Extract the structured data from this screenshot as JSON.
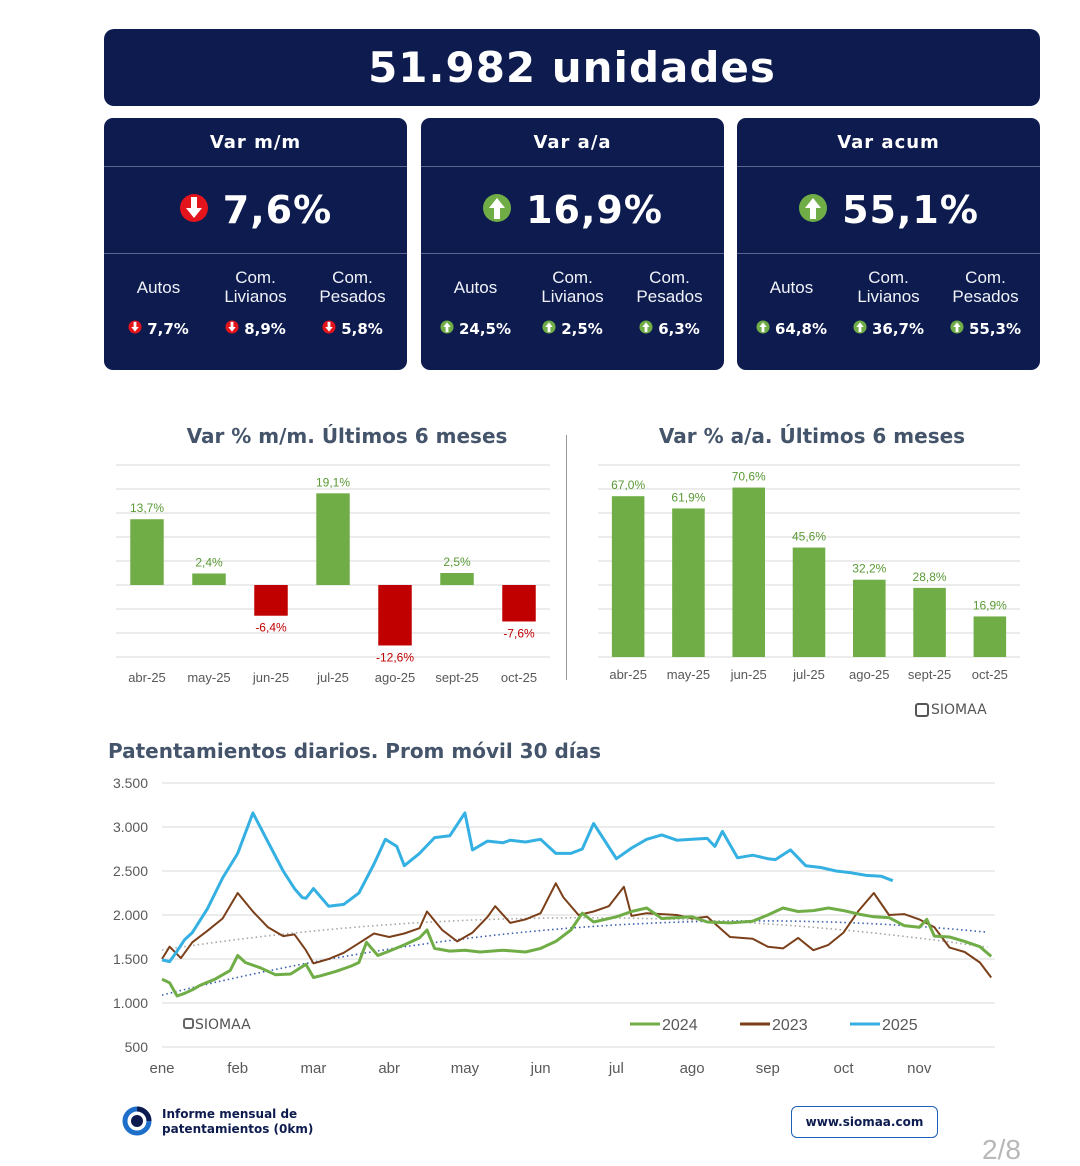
{
  "header": {
    "title": "51.982 unidades"
  },
  "cards": [
    {
      "title": "Var m/m",
      "value": "7,6%",
      "direction": "down",
      "subs": [
        {
          "label": "Autos",
          "value": "7,7%",
          "direction": "down"
        },
        {
          "label": "Com.\nLivianos",
          "value": "8,9%",
          "direction": "down"
        },
        {
          "label": "Com.\nPesados",
          "value": "5,8%",
          "direction": "down"
        }
      ]
    },
    {
      "title": "Var a/a",
      "value": "16,9%",
      "direction": "up",
      "subs": [
        {
          "label": "Autos",
          "value": "24,5%",
          "direction": "up"
        },
        {
          "label": "Com.\nLivianos",
          "value": "2,5%",
          "direction": "up"
        },
        {
          "label": "Com.\nPesados",
          "value": "6,3%",
          "direction": "up"
        }
      ]
    },
    {
      "title": "Var acum",
      "value": "55,1%",
      "direction": "up",
      "subs": [
        {
          "label": "Autos",
          "value": "64,8%",
          "direction": "up"
        },
        {
          "label": "Com.\nLivianos",
          "value": "36,7%",
          "direction": "up"
        },
        {
          "label": "Com.\nPesados",
          "value": "55,3%",
          "direction": "up"
        }
      ]
    }
  ],
  "colors": {
    "navy": "#0d1b4f",
    "up": "#70ad47",
    "down": "#e3141b",
    "bar_green": "#70ad47",
    "bar_red": "#c00000",
    "line_2024": "#70ad47",
    "line_2023": "#7b3f1a",
    "line_2025": "#35b0e2"
  },
  "brand": {
    "watermark": "SIOMAA",
    "logo_text": "Informe mensual de\npatentamientos (0km)",
    "url": "www.siomaa.com"
  },
  "page_number": "2/8",
  "chart_data": [
    {
      "type": "bar",
      "title": "Var % m/m. Últimos 6 meses",
      "categories": [
        "abr-25",
        "may-25",
        "jun-25",
        "jul-25",
        "ago-25",
        "sept-25",
        "oct-25"
      ],
      "values": [
        13.7,
        2.4,
        -6.4,
        19.1,
        -12.6,
        2.5,
        -7.6
      ],
      "data_labels": [
        "13,7%",
        "2,4%",
        "-6,4%",
        "19,1%",
        "-12,6%",
        "2,5%",
        "-7,6%"
      ],
      "ylim": [
        -15,
        25
      ],
      "grid": true,
      "y_tick_labels_shown": false
    },
    {
      "type": "bar",
      "title": "Var % a/a. Últimos 6 meses",
      "categories": [
        "abr-25",
        "may-25",
        "jun-25",
        "jul-25",
        "ago-25",
        "sept-25",
        "oct-25"
      ],
      "values": [
        67.0,
        61.9,
        70.6,
        45.6,
        32.2,
        28.8,
        16.9
      ],
      "data_labels": [
        "67,0%",
        "61,9%",
        "70,6%",
        "45,6%",
        "32,2%",
        "28,8%",
        "16,9%"
      ],
      "ylim": [
        0,
        80
      ],
      "grid": true,
      "y_tick_labels_shown": false
    },
    {
      "type": "line",
      "title": "Patentamientos diarios. Prom móvil 30 días",
      "x_ticks": [
        "ene",
        "feb",
        "mar",
        "abr",
        "may",
        "jun",
        "jul",
        "ago",
        "sep",
        "oct",
        "nov"
      ],
      "y_ticks": [
        "3.500",
        "3.000",
        "2.500",
        "2.000",
        "1.500",
        "1.000",
        "500"
      ],
      "ylim": [
        500,
        3500
      ],
      "xlim": [
        0,
        11
      ],
      "grid": true,
      "legend": "bottom-right",
      "series": [
        {
          "name": "2024",
          "x": [
            0,
            0.1,
            0.2,
            0.3,
            0.4,
            0.5,
            0.7,
            0.9,
            1.0,
            1.1,
            1.3,
            1.5,
            1.7,
            1.9,
            2.0,
            2.1,
            2.3,
            2.5,
            2.6,
            2.7,
            2.85,
            3.0,
            3.2,
            3.4,
            3.5,
            3.6,
            3.8,
            4.0,
            4.2,
            4.5,
            4.8,
            5.0,
            5.2,
            5.4,
            5.55,
            5.7,
            6.0,
            6.2,
            6.4,
            6.6,
            6.8,
            7.0,
            7.2,
            7.5,
            7.8,
            8.0,
            8.2,
            8.4,
            8.6,
            8.8,
            9.0,
            9.2,
            9.4,
            9.6,
            9.8,
            10.0,
            10.1,
            10.2,
            10.4,
            10.6,
            10.8,
            10.95
          ],
          "y": [
            1270,
            1230,
            1080,
            1110,
            1150,
            1200,
            1270,
            1370,
            1540,
            1460,
            1400,
            1320,
            1330,
            1440,
            1290,
            1310,
            1360,
            1420,
            1460,
            1690,
            1540,
            1590,
            1660,
            1740,
            1830,
            1620,
            1590,
            1600,
            1580,
            1600,
            1580,
            1620,
            1700,
            1830,
            2020,
            1920,
            1980,
            2040,
            2080,
            1960,
            1970,
            1980,
            1920,
            1910,
            1930,
            2000,
            2080,
            2040,
            2050,
            2080,
            2050,
            2010,
            1980,
            1970,
            1880,
            1860,
            1950,
            1760,
            1750,
            1700,
            1640,
            1530
          ]
        },
        {
          "name": "2023",
          "x": [
            0,
            0.1,
            0.25,
            0.4,
            0.6,
            0.8,
            1.0,
            1.2,
            1.4,
            1.6,
            1.75,
            1.9,
            2.0,
            2.2,
            2.4,
            2.6,
            2.8,
            3.0,
            3.2,
            3.4,
            3.5,
            3.7,
            3.9,
            4.1,
            4.3,
            4.4,
            4.6,
            4.8,
            5.0,
            5.2,
            5.3,
            5.5,
            5.7,
            5.9,
            6.1,
            6.2,
            6.4,
            6.6,
            6.8,
            7.0,
            7.2,
            7.5,
            7.8,
            8.0,
            8.2,
            8.4,
            8.6,
            8.8,
            9.0,
            9.2,
            9.4,
            9.6,
            9.8,
            10.0,
            10.2,
            10.4,
            10.6,
            10.8,
            10.95
          ],
          "y": [
            1500,
            1640,
            1510,
            1690,
            1820,
            1960,
            2250,
            2040,
            1860,
            1760,
            1780,
            1600,
            1450,
            1500,
            1570,
            1680,
            1790,
            1750,
            1790,
            1850,
            2040,
            1830,
            1700,
            1800,
            1980,
            2100,
            1910,
            1950,
            2020,
            2360,
            2200,
            2000,
            2040,
            2100,
            2320,
            1990,
            2020,
            2010,
            2000,
            1960,
            1980,
            1750,
            1730,
            1640,
            1620,
            1740,
            1600,
            1660,
            1800,
            2050,
            2250,
            2000,
            2010,
            1950,
            1860,
            1630,
            1580,
            1460,
            1290
          ]
        },
        {
          "name": "2025",
          "x": [
            0,
            0.1,
            0.2,
            0.3,
            0.4,
            0.6,
            0.8,
            1.0,
            1.2,
            1.4,
            1.6,
            1.75,
            1.85,
            1.9,
            2.0,
            2.2,
            2.4,
            2.6,
            2.8,
            2.95,
            3.1,
            3.2,
            3.4,
            3.6,
            3.8,
            4.0,
            4.1,
            4.3,
            4.5,
            4.6,
            4.8,
            5.0,
            5.2,
            5.4,
            5.55,
            5.7,
            6.0,
            6.2,
            6.4,
            6.6,
            6.8,
            7.0,
            7.2,
            7.3,
            7.4,
            7.6,
            7.8,
            8.0,
            8.1,
            8.3,
            8.5,
            8.7,
            8.9,
            9.1,
            9.3,
            9.5,
            9.65
          ],
          "y": [
            1490,
            1470,
            1590,
            1720,
            1800,
            2070,
            2420,
            2700,
            3160,
            2830,
            2500,
            2300,
            2200,
            2190,
            2300,
            2100,
            2120,
            2250,
            2580,
            2860,
            2780,
            2560,
            2700,
            2880,
            2900,
            3160,
            2740,
            2840,
            2820,
            2850,
            2830,
            2860,
            2700,
            2700,
            2750,
            3040,
            2640,
            2760,
            2860,
            2910,
            2850,
            2860,
            2870,
            2780,
            2950,
            2650,
            2680,
            2640,
            2630,
            2740,
            2560,
            2540,
            2500,
            2480,
            2450,
            2440,
            2390
          ]
        }
      ]
    }
  ]
}
